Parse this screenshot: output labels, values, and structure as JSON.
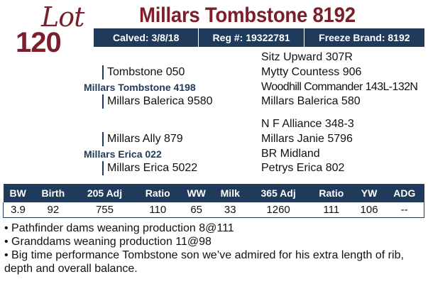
{
  "lot": {
    "label": "Lot",
    "number": "120"
  },
  "title": "Millars Tombstone 8192",
  "infobar": {
    "calved": "Calved: 3/8/18",
    "reg": "Reg #: 19322781",
    "freeze": "Freeze Brand: 8192"
  },
  "pedigree": {
    "sire": {
      "gg_top_top": "Sitz Upward 307R",
      "gg_top_bottom": "Mytty Countess 906",
      "g_top": "Tombstone 050",
      "name": "Millars Tombstone 4198",
      "g_bottom": "Millars Balerica 9580",
      "gg_bottom_top": "Woodhill Commander 143L-132N",
      "gg_bottom_bottom": "Millars Balerica 580"
    },
    "dam": {
      "gg_top_top": "N F Alliance 348-3",
      "gg_top_bottom": "Millars Janie 5796",
      "g_top": "Millars Ally 879",
      "name": "Millars Erica 022",
      "g_bottom": "Millars Erica 5022",
      "gg_bottom_top": "BR Midland",
      "gg_bottom_bottom": "Petrys Erica 802"
    }
  },
  "epd": {
    "headers": [
      "BW",
      "Birth",
      "205 Adj",
      "Ratio",
      "WW",
      "Milk",
      "365 Adj",
      "Ratio",
      "YW",
      "ADG"
    ],
    "values": [
      "3.9",
      "92",
      "755",
      "110",
      "65",
      "33",
      "1260",
      "111",
      "106",
      "--"
    ]
  },
  "notes": [
    "• Pathfinder dams weaning production 8@111",
    "• Granddams weaning production 11@98",
    "• Big time performance Tombstone son we’ve admired for his extra length of rib, depth and overall balance."
  ],
  "colors": {
    "maroon": "#7a1f2b",
    "navy": "#1f3a5a"
  }
}
